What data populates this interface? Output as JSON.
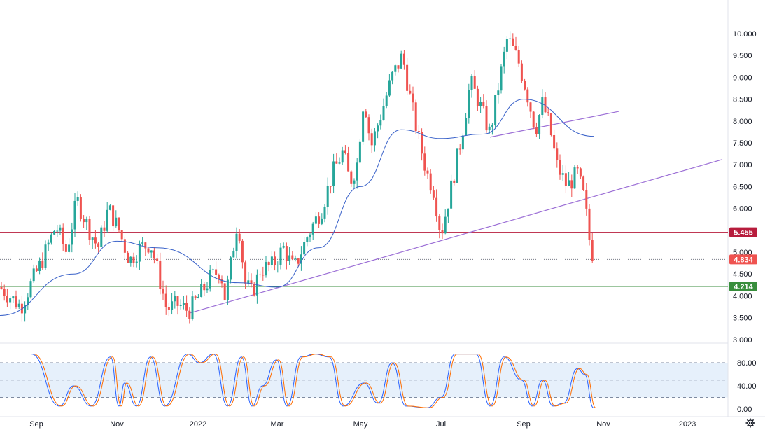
{
  "chart_data": [
    {
      "type": "candlestick",
      "title": "",
      "x_ticks": [
        "Sep",
        "Nov",
        "2022",
        "Mar",
        "May",
        "Jul",
        "Sep",
        "Nov",
        "2023"
      ],
      "y_ticks": [
        "10.000",
        "9.500",
        "9.000",
        "8.500",
        "8.000",
        "7.500",
        "7.000",
        "6.500",
        "6.000",
        "5.500",
        "5.000",
        "4.500",
        "4.000",
        "3.500",
        "3.000"
      ],
      "ylim": [
        3.0,
        10.0
      ],
      "grid": false,
      "legend": "none",
      "key_points": [
        {
          "period": "Aug 2021",
          "close": 4.2
        },
        {
          "period": "Sep 2021",
          "close": 3.8
        },
        {
          "period": "Oct 2021",
          "close": 5.9
        },
        {
          "period": "Nov 2021",
          "close": 5.3
        },
        {
          "period": "Dec 2021",
          "close": 4.6
        },
        {
          "period": "Jan 2022",
          "close": 3.8
        },
        {
          "period": "Feb 2022",
          "close": 4.0
        },
        {
          "period": "Mar 2022",
          "close": 4.7
        },
        {
          "period": "Apr 2022",
          "close": 7.4
        },
        {
          "period": "May 2022",
          "close": 9.4
        },
        {
          "period": "Jun 2022",
          "close": 7.0
        },
        {
          "period": "Jul 2022",
          "close": 5.4
        },
        {
          "period": "Aug 2022",
          "close": 9.8
        },
        {
          "period": "Sep 2022",
          "close": 7.9
        },
        {
          "period": "Oct 2022",
          "close": 4.834
        }
      ],
      "moving_average": [
        {
          "period": "Aug 2021",
          "value": 3.55
        },
        {
          "period": "Oct 2021",
          "value": 4.5
        },
        {
          "period": "Nov 2021",
          "value": 5.25
        },
        {
          "period": "Dec 2021",
          "value": 5.1
        },
        {
          "period": "Feb 2022",
          "value": 4.3
        },
        {
          "period": "Mar 2022",
          "value": 4.2
        },
        {
          "period": "Apr 2022",
          "value": 5.1
        },
        {
          "period": "May 2022",
          "value": 6.5
        },
        {
          "period": "Jun 2022",
          "value": 7.8
        },
        {
          "period": "Jul 2022",
          "value": 7.6
        },
        {
          "period": "Aug 2022",
          "value": 7.7
        },
        {
          "period": "Sep 2022",
          "value": 8.5
        },
        {
          "period": "Oct 2022",
          "value": 7.65
        }
      ],
      "horizontal_levels": [
        {
          "value": 5.455,
          "label": "5.455",
          "color": "#b71c3c"
        },
        {
          "value": 4.834,
          "label": "4.834",
          "color": "#ef5350"
        },
        {
          "value": 4.214,
          "label": "4.214",
          "color": "#388e3c"
        }
      ],
      "trendlines_color": "#9c6fd6",
      "up_color": "#26a69a",
      "down_color": "#ef5350",
      "ma_color": "#3a62c9"
    },
    {
      "type": "line",
      "title": "",
      "y_ticks": [
        "80.00",
        "40.00",
        "0.00"
      ],
      "ylim": [
        0,
        100
      ],
      "band": [
        20,
        80
      ],
      "band_color": "#e6f0fb",
      "series_colors": [
        "#2962ff",
        "#ff6d00"
      ]
    }
  ]
}
